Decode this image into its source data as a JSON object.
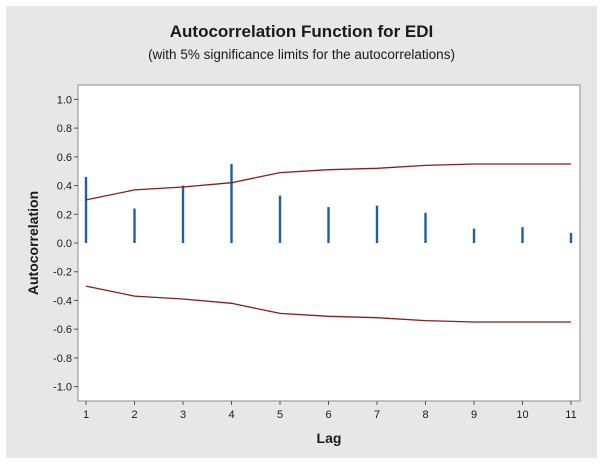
{
  "chart_data": {
    "type": "bar",
    "title": "Autocorrelation Function for EDI",
    "subtitle": "(with 5% significance limits for the autocorrelations)",
    "xlabel": "Lag",
    "ylabel": "Autocorrelation",
    "x": [
      1,
      2,
      3,
      4,
      5,
      6,
      7,
      8,
      9,
      10,
      11
    ],
    "values": [
      0.46,
      0.24,
      0.4,
      0.55,
      0.33,
      0.25,
      0.26,
      0.21,
      0.1,
      0.11,
      0.07
    ],
    "significance_upper": [
      0.3,
      0.37,
      0.39,
      0.42,
      0.49,
      0.51,
      0.52,
      0.54,
      0.55,
      0.55,
      0.55
    ],
    "significance_lower": [
      -0.3,
      -0.37,
      -0.39,
      -0.42,
      -0.49,
      -0.51,
      -0.52,
      -0.54,
      -0.55,
      -0.55,
      -0.55
    ],
    "ylim": [
      -1.1,
      1.1
    ],
    "yticks": [
      1.0,
      0.8,
      0.6,
      0.4,
      0.2,
      0.0,
      -0.2,
      -0.4,
      -0.6,
      -0.8,
      -1.0
    ],
    "ytick_labels": [
      "1.0",
      "0.8",
      "0.6",
      "0.4",
      "0.2",
      "0.0",
      "-0.2",
      "-0.4",
      "-0.6",
      "-0.8",
      "-1.0"
    ],
    "xtick_labels": [
      "1",
      "2",
      "3",
      "4",
      "5",
      "6",
      "7",
      "8",
      "9",
      "10",
      "11"
    ],
    "grid": false,
    "colors": {
      "bars": "#1f5fa8",
      "limits": "#8b1a1a",
      "background": "#e7e7e7",
      "plot_background": "#ffffff"
    }
  }
}
